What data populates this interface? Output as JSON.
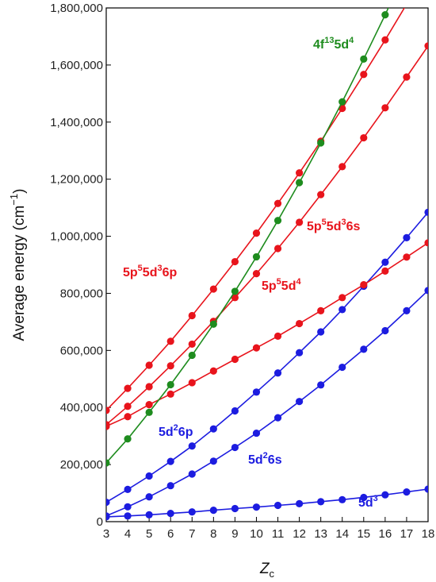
{
  "chart_data": {
    "type": "line",
    "title": "",
    "xlabel": {
      "main": "Z",
      "sub": "c"
    },
    "ylabel": {
      "text": "Average energy (cm",
      "sup": "−1",
      "tail": ")"
    },
    "xlim": [
      3,
      18
    ],
    "ylim": [
      0,
      1800000
    ],
    "x_ticks": [
      3,
      4,
      5,
      6,
      7,
      8,
      9,
      10,
      11,
      12,
      13,
      14,
      15,
      16,
      17,
      18
    ],
    "y_ticks": [
      0,
      200000,
      400000,
      600000,
      800000,
      1000000,
      1200000,
      1400000,
      1600000,
      1800000
    ],
    "y_tick_labels": [
      "0",
      "200,000",
      "400,000",
      "600,000",
      "800,000",
      "1,000,000",
      "1,200,000",
      "1,400,000",
      "1,600,000",
      "1,800,000"
    ],
    "grid": false,
    "legend": "none (series labelled inline)",
    "colors": {
      "red": "#e8141c",
      "green": "#1e8c1e",
      "blue": "#1c1ce0"
    },
    "x": [
      3,
      4,
      5,
      6,
      7,
      8,
      9,
      10,
      11,
      12,
      13,
      14,
      15,
      16,
      17,
      18
    ],
    "series": [
      {
        "label": [
          [
            "4f",
            ""
          ],
          [
            "13",
            "sup"
          ],
          [
            "5d",
            ""
          ],
          [
            "4",
            "sup"
          ]
        ],
        "color": "#1e8c1e",
        "values": [
          206000,
          290000,
          383000,
          480000,
          583000,
          692000,
          807000,
          928000,
          1055000,
          1188000,
          1327000,
          1471000,
          1621000,
          1776000,
          null,
          null
        ]
      },
      {
        "label": [
          [
            "5p",
            ""
          ],
          [
            "5",
            "sup"
          ],
          [
            "5d",
            ""
          ],
          [
            "3",
            "sup"
          ],
          [
            "6p",
            ""
          ]
        ],
        "color": "#e8141c",
        "values": [
          390000,
          467000,
          548000,
          632000,
          722000,
          815000,
          911000,
          1011000,
          1115000,
          1222000,
          1333000,
          1448000,
          1567000,
          1688000,
          1813000,
          null
        ]
      },
      {
        "label": [
          [
            "5p",
            ""
          ],
          [
            "5",
            "sup"
          ],
          [
            "5d",
            ""
          ],
          [
            "3",
            "sup"
          ],
          [
            "6s",
            ""
          ]
        ],
        "color": "#e8141c",
        "values": [
          340000,
          404000,
          473000,
          546000,
          622000,
          702000,
          785000,
          869000,
          957000,
          1049000,
          1146000,
          1244000,
          1345000,
          1450000,
          1558000,
          1667000
        ]
      },
      {
        "label": [
          [
            "5p",
            ""
          ],
          [
            "5",
            "sup"
          ],
          [
            "5d",
            ""
          ],
          [
            "4",
            "sup"
          ]
        ],
        "color": "#e8141c",
        "values": [
          334000,
          368000,
          410000,
          447000,
          487000,
          528000,
          569000,
          609000,
          650000,
          694000,
          739000,
          785000,
          830000,
          878000,
          927000,
          977000
        ]
      },
      {
        "label": [
          [
            "5d",
            ""
          ],
          [
            "2",
            "sup"
          ],
          [
            "6p",
            ""
          ]
        ],
        "color": "#1c1ce0",
        "values": [
          68000,
          113000,
          160000,
          211000,
          265000,
          325000,
          388000,
          454000,
          521000,
          592000,
          665000,
          743000,
          825000,
          909000,
          995000,
          1084000
        ]
      },
      {
        "label": [
          [
            "5d",
            ""
          ],
          [
            "2",
            "sup"
          ],
          [
            "6s",
            ""
          ]
        ],
        "color": "#1c1ce0",
        "values": [
          20000,
          52000,
          87000,
          126000,
          167000,
          212000,
          260000,
          310000,
          364000,
          421000,
          479000,
          541000,
          604000,
          669000,
          739000,
          810000
        ]
      },
      {
        "label": [
          [
            "5d",
            ""
          ],
          [
            "3",
            "sup"
          ]
        ],
        "color": "#1c1ce0",
        "values": [
          17000,
          20000,
          24000,
          29000,
          34000,
          40000,
          46000,
          51000,
          57000,
          63000,
          70000,
          77000,
          85000,
          94000,
          104000,
          114000
        ]
      }
    ]
  }
}
